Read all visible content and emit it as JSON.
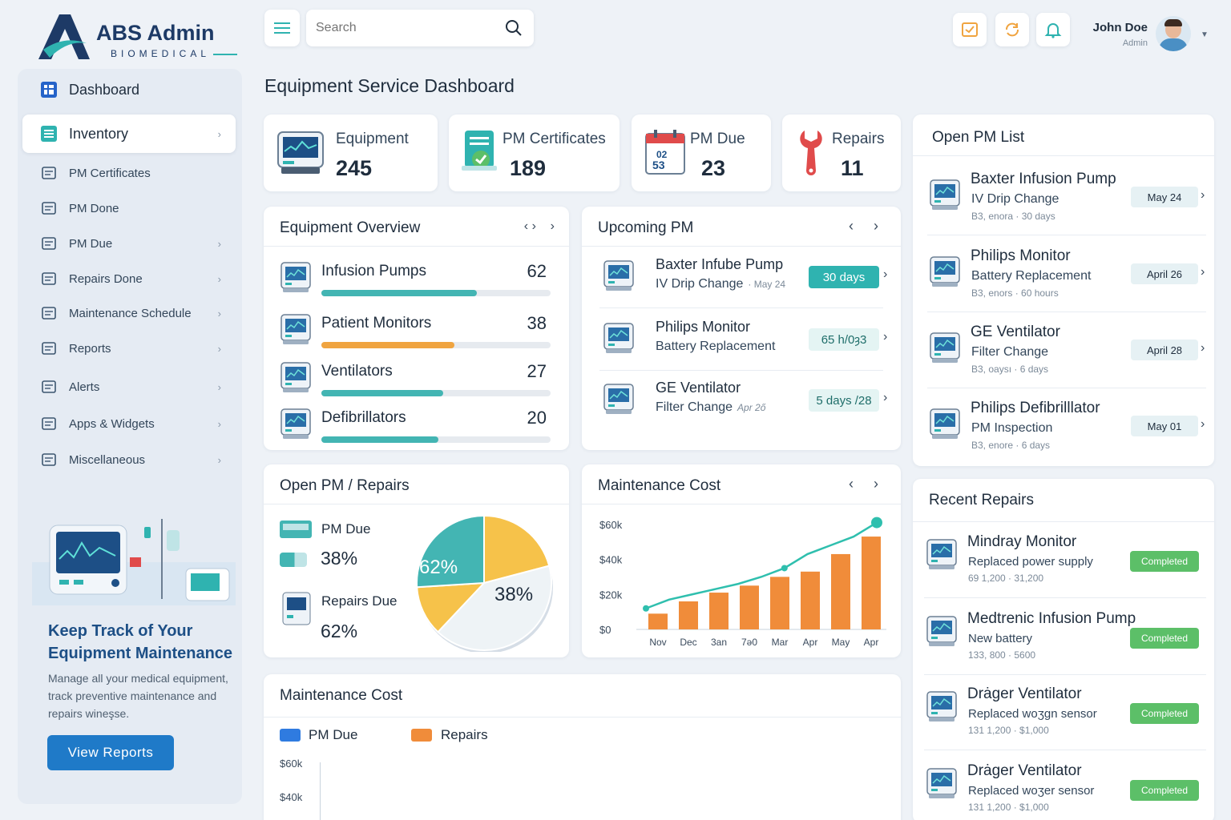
{
  "brand": {
    "name": "ABS Admin",
    "sub": "BIOMEDICAL"
  },
  "search": {
    "placeholder": "Search"
  },
  "user": {
    "name": "John Doe",
    "role": "Admin"
  },
  "page_title": "Equipment Service Dashboard",
  "sidebar": {
    "dashboard": "Dashboard",
    "inventory": "Inventory",
    "items": [
      {
        "label": "PM Certificates",
        "icon": "certificate-icon",
        "chevron": false
      },
      {
        "label": "PM Done",
        "icon": "pm-done-icon",
        "chevron": false
      },
      {
        "label": "PM Due",
        "icon": "pm-due-icon",
        "chevron": true
      },
      {
        "label": "Repairs Done",
        "icon": "repairs-icon",
        "chevron": true
      },
      {
        "label": "Maintenance Schedule",
        "icon": "schedule-icon",
        "chevron": true
      },
      {
        "label": "Reports",
        "icon": "reports-icon",
        "chevron": true
      },
      {
        "label": "Alerts",
        "icon": "megaphone-icon",
        "chevron": true
      },
      {
        "label": "Apps & Widgets",
        "icon": "apps-icon",
        "chevron": true
      },
      {
        "label": "Miscellaneous",
        "icon": "gear-icon",
        "chevron": true
      }
    ],
    "promo": {
      "title": "Keep Track of Your Equipment Maintenance",
      "text": "Manage all your medical equipment, track preventive maintenance and repairs wineşse.",
      "button": "View Reports"
    }
  },
  "stats": [
    {
      "label": "Equipment",
      "value": "245"
    },
    {
      "label": "PM Certificates",
      "value": "189"
    },
    {
      "label": "PM Due",
      "value": "23"
    },
    {
      "label": "Repairs",
      "value": "11"
    }
  ],
  "equipment_overview": {
    "title": "Equipment Overview",
    "items": [
      {
        "name": "Infusion Pumps",
        "count": "62",
        "fill": 0.68,
        "color": "#43b5b3"
      },
      {
        "name": "Patient Monitors",
        "count": "38",
        "fill": 0.58,
        "color": "#f0a440"
      },
      {
        "name": "Ventilators",
        "count": "27",
        "fill": 0.53,
        "color": "#43b5b3"
      },
      {
        "name": "Defibrillators",
        "count": "20",
        "fill": 0.51,
        "color": "#43b5b3"
      }
    ]
  },
  "upcoming_pm": {
    "title": "Upcoming PM",
    "items": [
      {
        "name": "Baxter Infube Pump",
        "task": "IV Drip Change",
        "date": "· May 24",
        "badge": "30 days",
        "badge_style": "solid"
      },
      {
        "name": "Philips Monitor",
        "task": "Battery Replacement",
        "date": "",
        "badge": "65 h/0ȝ3",
        "badge_style": "light"
      },
      {
        "name": "GE Ventilator",
        "task": "Filter Change",
        "date": "Apr 2ő",
        "badge": "5 days /28",
        "badge_style": "light"
      }
    ]
  },
  "open_pm_list": {
    "title": "Open PM List",
    "items": [
      {
        "name": "Baxter Infusion Pump",
        "task": "IV Drip Change",
        "meta": "B3, enora · 30 days",
        "date": "May 24"
      },
      {
        "name": "Philips Monitor",
        "task": "Battery Replacement",
        "meta": "B3, enors · 60 hours",
        "date": "April 26"
      },
      {
        "name": "GE Ventilator",
        "task": "Filter Change",
        "meta": "B3, oaysı · 6 days",
        "date": "April 28"
      },
      {
        "name": "Philips Defibrilllator",
        "task": "PM Inspection",
        "meta": "B3, enore · 6 days",
        "date": "May 01"
      }
    ]
  },
  "open_pm_repairs": {
    "title": "Open PM / Repairs",
    "pm_due_label": "PM Due",
    "pm_due_value": "38%",
    "repairs_due_label": "Repairs Due",
    "repairs_due_value": "62%"
  },
  "maintenance_cost_card": {
    "title": "Maintenance Cost"
  },
  "recent_repairs": {
    "title": "Recent Repairs",
    "items": [
      {
        "name": "Mindray Monitor",
        "desc": "Replaced power supply",
        "meta": "69 1,200 · 31,200",
        "status": "Completed"
      },
      {
        "name": "Medtrenic Infusion Pump",
        "desc": "New battery",
        "meta": "133, 800 · 5600",
        "status": "Completed"
      },
      {
        "name": "Drȧger Ventilator",
        "desc": "Replaced woʒgn sensor",
        "meta": "131 1,200 · $1,000",
        "status": "Completed"
      },
      {
        "name": "Drȧger Ventilator",
        "desc": "Replaced woʒer sensor",
        "meta": "131 1,200 · $1,000",
        "status": "Completed"
      }
    ]
  },
  "bottom_chart": {
    "title": "Maintenance Cost",
    "legend": [
      "PM Due",
      "Repairs"
    ],
    "legend_colors": [
      "#2f7be0",
      "#f08c3a"
    ],
    "yticks": [
      "$60k",
      "$40k"
    ]
  },
  "chart_data": [
    {
      "type": "pie",
      "labels": [
        "Repairs Due",
        "PM Due"
      ],
      "values": [
        62,
        38
      ],
      "slice_labels": [
        "62%",
        "38%"
      ],
      "colors": [
        "#43b5b3",
        "#f6c24a"
      ]
    },
    {
      "type": "bar",
      "categories": [
        "Nov",
        "Dec",
        "3an",
        "7ǝ0",
        "Mar",
        "Apr",
        "May",
        "Apr"
      ],
      "values": [
        9,
        16,
        21,
        25,
        30,
        33,
        43,
        53
      ],
      "line_values": [
        12,
        17,
        20,
        23,
        26,
        30,
        35,
        43,
        48,
        53,
        61
      ],
      "ylim": [
        0,
        64
      ],
      "yticks": [
        "$0",
        "$20k",
        "$40k",
        "$60k"
      ],
      "ytick_values": [
        0,
        20,
        40,
        60
      ],
      "bar_color": "#f08c3a",
      "line_color": "#2fbfae"
    }
  ]
}
